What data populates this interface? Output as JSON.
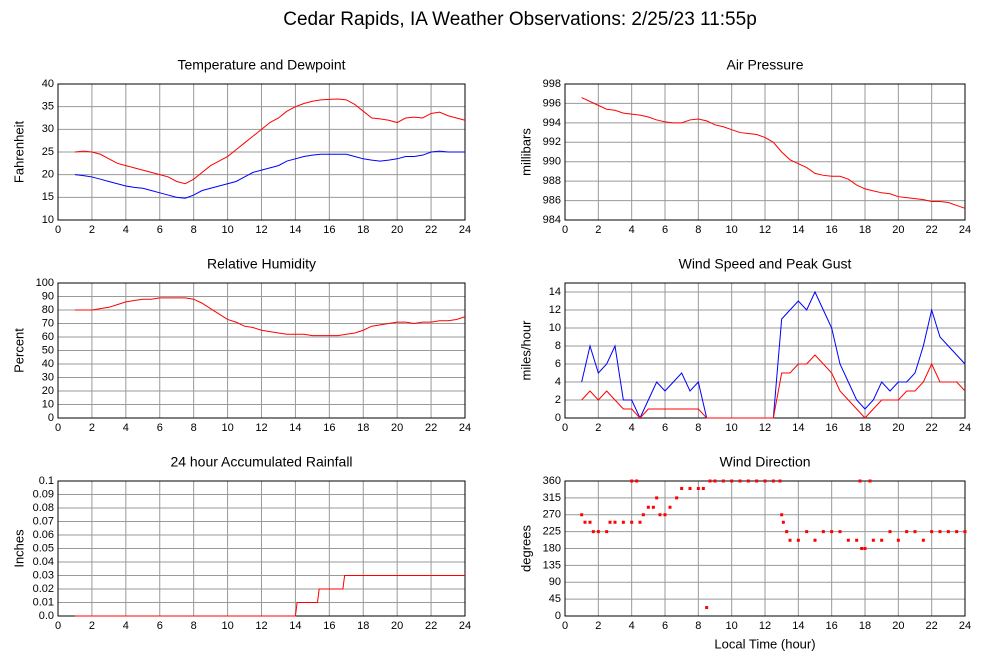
{
  "title": "Cedar Rapids, IA Weather Observations: 2/25/23 11:55p",
  "chart_data": [
    {
      "type": "line",
      "title": "Temperature and Dewpoint",
      "y_label": "Fahrenheit",
      "x": [
        1,
        1.5,
        2,
        2.5,
        3,
        3.5,
        4,
        4.5,
        5,
        5.5,
        6,
        6.5,
        7,
        7.5,
        8,
        8.5,
        9,
        9.5,
        10,
        10.5,
        11,
        11.5,
        12,
        12.5,
        13,
        13.5,
        14,
        14.5,
        15,
        15.5,
        16,
        16.5,
        17,
        17.5,
        18,
        18.5,
        19,
        19.5,
        20,
        20.5,
        21,
        21.5,
        22,
        22.5,
        23,
        23.5,
        24
      ],
      "series": [
        {
          "color": "#ff0000",
          "values": [
            25,
            25.2,
            25,
            24.5,
            23.5,
            22.5,
            22,
            21.5,
            21,
            20.5,
            20,
            19.5,
            18.5,
            18,
            19,
            20.5,
            22,
            23,
            24,
            25.5,
            27,
            28.5,
            30,
            31.5,
            32.5,
            34,
            35,
            35.7,
            36.2,
            36.5,
            36.6,
            36.7,
            36.5,
            35.5,
            34,
            32.5,
            32.3,
            32,
            31.5,
            32.5,
            32.7,
            32.5,
            33.5,
            33.8,
            33,
            32.5,
            32
          ]
        },
        {
          "color": "#0000ff",
          "values": [
            20,
            19.8,
            19.5,
            19,
            18.5,
            18,
            17.5,
            17.2,
            17,
            16.5,
            16,
            15.5,
            15,
            14.8,
            15.5,
            16.5,
            17,
            17.5,
            18,
            18.5,
            19.5,
            20.5,
            21,
            21.5,
            22,
            23,
            23.5,
            24,
            24.3,
            24.5,
            24.5,
            24.5,
            24.5,
            24,
            23.5,
            23.2,
            23,
            23.2,
            23.5,
            24,
            24,
            24.3,
            25,
            25.2,
            25,
            25,
            25
          ]
        }
      ],
      "xlim": [
        0,
        24
      ],
      "xticks": [
        0,
        2,
        4,
        6,
        8,
        10,
        12,
        14,
        16,
        18,
        20,
        22,
        24
      ],
      "ylim": [
        10,
        40
      ],
      "yticks": [
        10,
        15,
        20,
        25,
        30,
        35,
        40
      ],
      "grid": true
    },
    {
      "type": "line",
      "title": "Air Pressure",
      "y_label": "millibars",
      "x": [
        1,
        1.5,
        2,
        2.5,
        3,
        3.5,
        4,
        4.5,
        5,
        5.5,
        6,
        6.5,
        7,
        7.5,
        8,
        8.5,
        9,
        9.5,
        10,
        10.5,
        11,
        11.5,
        12,
        12.5,
        13,
        13.5,
        14,
        14.5,
        15,
        15.5,
        16,
        16.5,
        17,
        17.5,
        18,
        18.5,
        19,
        19.5,
        20,
        20.5,
        21,
        21.5,
        22,
        22.5,
        23,
        23.5,
        24
      ],
      "series": [
        {
          "color": "#ff0000",
          "values": [
            996.6,
            996.2,
            995.8,
            995.4,
            995.3,
            995,
            994.9,
            994.8,
            994.6,
            994.3,
            994.1,
            994,
            994,
            994.3,
            994.4,
            994.2,
            993.8,
            993.6,
            993.3,
            993,
            992.9,
            992.8,
            992.5,
            992,
            991,
            990.2,
            989.8,
            989.4,
            988.8,
            988.6,
            988.5,
            988.5,
            988.2,
            987.6,
            987.2,
            987,
            986.8,
            986.7,
            986.4,
            986.3,
            986.2,
            986.1,
            985.9,
            985.9,
            985.8,
            985.5,
            985.2
          ]
        }
      ],
      "xlim": [
        0,
        24
      ],
      "xticks": [
        0,
        2,
        4,
        6,
        8,
        10,
        12,
        14,
        16,
        18,
        20,
        22,
        24
      ],
      "ylim": [
        984,
        998
      ],
      "yticks": [
        984,
        986,
        988,
        990,
        992,
        994,
        996,
        998
      ],
      "grid": true
    },
    {
      "type": "line",
      "title": "Relative Humidity",
      "y_label": "Percent",
      "x": [
        1,
        1.5,
        2,
        2.5,
        3,
        3.5,
        4,
        4.5,
        5,
        5.5,
        6,
        6.5,
        7,
        7.5,
        8,
        8.5,
        9,
        9.5,
        10,
        10.5,
        11,
        11.5,
        12,
        12.5,
        13,
        13.5,
        14,
        14.5,
        15,
        15.5,
        16,
        16.5,
        17,
        17.5,
        18,
        18.5,
        19,
        19.5,
        20,
        20.5,
        21,
        21.5,
        22,
        22.5,
        23,
        23.5,
        24
      ],
      "series": [
        {
          "color": "#ff0000",
          "values": [
            80,
            80,
            80,
            81,
            82,
            84,
            86,
            87,
            88,
            88,
            89,
            89,
            89,
            89,
            88,
            85,
            81,
            77,
            73,
            71,
            68,
            67,
            65,
            64,
            63,
            62,
            62,
            62,
            61,
            61,
            61,
            61,
            62,
            63,
            65,
            68,
            69,
            70,
            71,
            71,
            70,
            71,
            71,
            72,
            72,
            73,
            75
          ]
        }
      ],
      "xlim": [
        0,
        24
      ],
      "xticks": [
        0,
        2,
        4,
        6,
        8,
        10,
        12,
        14,
        16,
        18,
        20,
        22,
        24
      ],
      "ylim": [
        0,
        100
      ],
      "yticks": [
        0,
        10,
        20,
        30,
        40,
        50,
        60,
        70,
        80,
        90,
        100
      ],
      "grid": true
    },
    {
      "type": "line",
      "title": "Wind Speed and Peak Gust",
      "y_label": "miles/hour",
      "x": [
        1,
        1.5,
        2,
        2.5,
        3,
        3.5,
        4,
        4.5,
        5,
        5.5,
        6,
        6.5,
        7,
        7.5,
        8,
        8.5,
        9,
        9.5,
        10,
        10.5,
        11,
        11.5,
        12,
        12.5,
        13,
        13.5,
        14,
        14.5,
        15,
        15.5,
        16,
        16.5,
        17,
        17.5,
        18,
        18.5,
        19,
        19.5,
        20,
        20.5,
        21,
        21.5,
        22,
        22.5,
        23,
        23.5,
        24
      ],
      "series": [
        {
          "color": "#0000ff",
          "values": [
            4,
            8,
            5,
            6,
            8,
            2,
            2,
            0,
            2,
            4,
            3,
            4,
            5,
            3,
            4,
            0,
            0,
            0,
            0,
            0,
            0,
            0,
            0,
            0,
            11,
            12,
            13,
            12,
            14,
            12,
            10,
            6,
            4,
            2,
            1,
            2,
            4,
            3,
            4,
            4,
            5,
            8,
            12,
            9,
            8,
            7,
            6
          ]
        },
        {
          "color": "#ff0000",
          "values": [
            2,
            3,
            2,
            3,
            2,
            1,
            1,
            0,
            1,
            1,
            1,
            1,
            1,
            1,
            1,
            0,
            0,
            0,
            0,
            0,
            0,
            0,
            0,
            0,
            5,
            5,
            6,
            6,
            7,
            6,
            5,
            3,
            2,
            1,
            0,
            1,
            2,
            2,
            2,
            3,
            3,
            4,
            6,
            4,
            4,
            4,
            3
          ]
        }
      ],
      "xlim": [
        0,
        24
      ],
      "xticks": [
        0,
        2,
        4,
        6,
        8,
        10,
        12,
        14,
        16,
        18,
        20,
        22,
        24
      ],
      "ylim": [
        0,
        15
      ],
      "yticks": [
        0,
        2,
        4,
        6,
        8,
        10,
        12,
        14
      ],
      "grid": true
    },
    {
      "type": "line",
      "title": "24 hour Accumulated Rainfall",
      "y_label": "Inches",
      "x": [
        1,
        14,
        14.1,
        15.3,
        15.4,
        16.8,
        16.9,
        24
      ],
      "series": [
        {
          "color": "#ff0000",
          "values": [
            0,
            0,
            0.01,
            0.01,
            0.02,
            0.02,
            0.03,
            0.03
          ]
        }
      ],
      "xlim": [
        0,
        24
      ],
      "xticks": [
        0,
        2,
        4,
        6,
        8,
        10,
        12,
        14,
        16,
        18,
        20,
        22,
        24
      ],
      "ylim": [
        0,
        0.1
      ],
      "yticks": [
        {
          "value": 0,
          "label": "0.0"
        },
        0.01,
        0.02,
        0.03,
        0.04,
        0.05,
        0.06,
        0.07,
        0.08,
        0.09,
        0.1
      ],
      "grid": true
    },
    {
      "type": "scatter",
      "title": "Wind Direction",
      "y_label": "degrees",
      "x_label": "Local Time (hour)",
      "x": [
        1,
        1.2,
        1.5,
        1.7,
        2,
        2.5,
        2.7,
        3,
        3.5,
        4,
        4,
        4.3,
        4.5,
        4.7,
        5,
        5.3,
        5.5,
        5.7,
        6,
        6.3,
        6.7,
        7,
        7.5,
        8,
        8.3,
        8.5,
        8.7,
        9,
        9.5,
        10,
        10.5,
        11,
        11.5,
        12,
        12.5,
        12.9,
        13,
        13.1,
        13.3,
        13.5,
        14,
        14.5,
        15,
        15.5,
        16,
        16.5,
        17,
        17.5,
        17.7,
        17.8,
        18,
        18.3,
        18.5,
        19,
        19.5,
        20,
        20.5,
        21,
        21.5,
        22,
        22.5,
        23,
        23.5,
        24
      ],
      "series": [
        {
          "color": "#ff0000",
          "values": [
            270,
            250,
            250,
            225,
            225,
            225,
            250,
            250,
            250,
            250,
            360,
            360,
            250,
            270,
            290,
            290,
            315,
            270,
            270,
            290,
            315,
            340,
            340,
            340,
            340,
            22.5,
            360,
            360,
            360,
            360,
            360,
            360,
            360,
            360,
            360,
            360,
            270,
            250,
            225,
            202,
            202,
            225,
            202,
            225,
            225,
            225,
            202,
            202,
            360,
            180,
            180,
            360,
            202,
            202,
            225,
            202,
            225,
            225,
            202,
            225,
            225,
            225,
            225,
            225
          ]
        }
      ],
      "xlim": [
        0,
        24
      ],
      "xticks": [
        0,
        2,
        4,
        6,
        8,
        10,
        12,
        14,
        16,
        18,
        20,
        22,
        24
      ],
      "ylim": [
        0,
        360
      ],
      "yticks": [
        0,
        45,
        90,
        135,
        180,
        225,
        270,
        315,
        360
      ],
      "grid": true
    }
  ]
}
